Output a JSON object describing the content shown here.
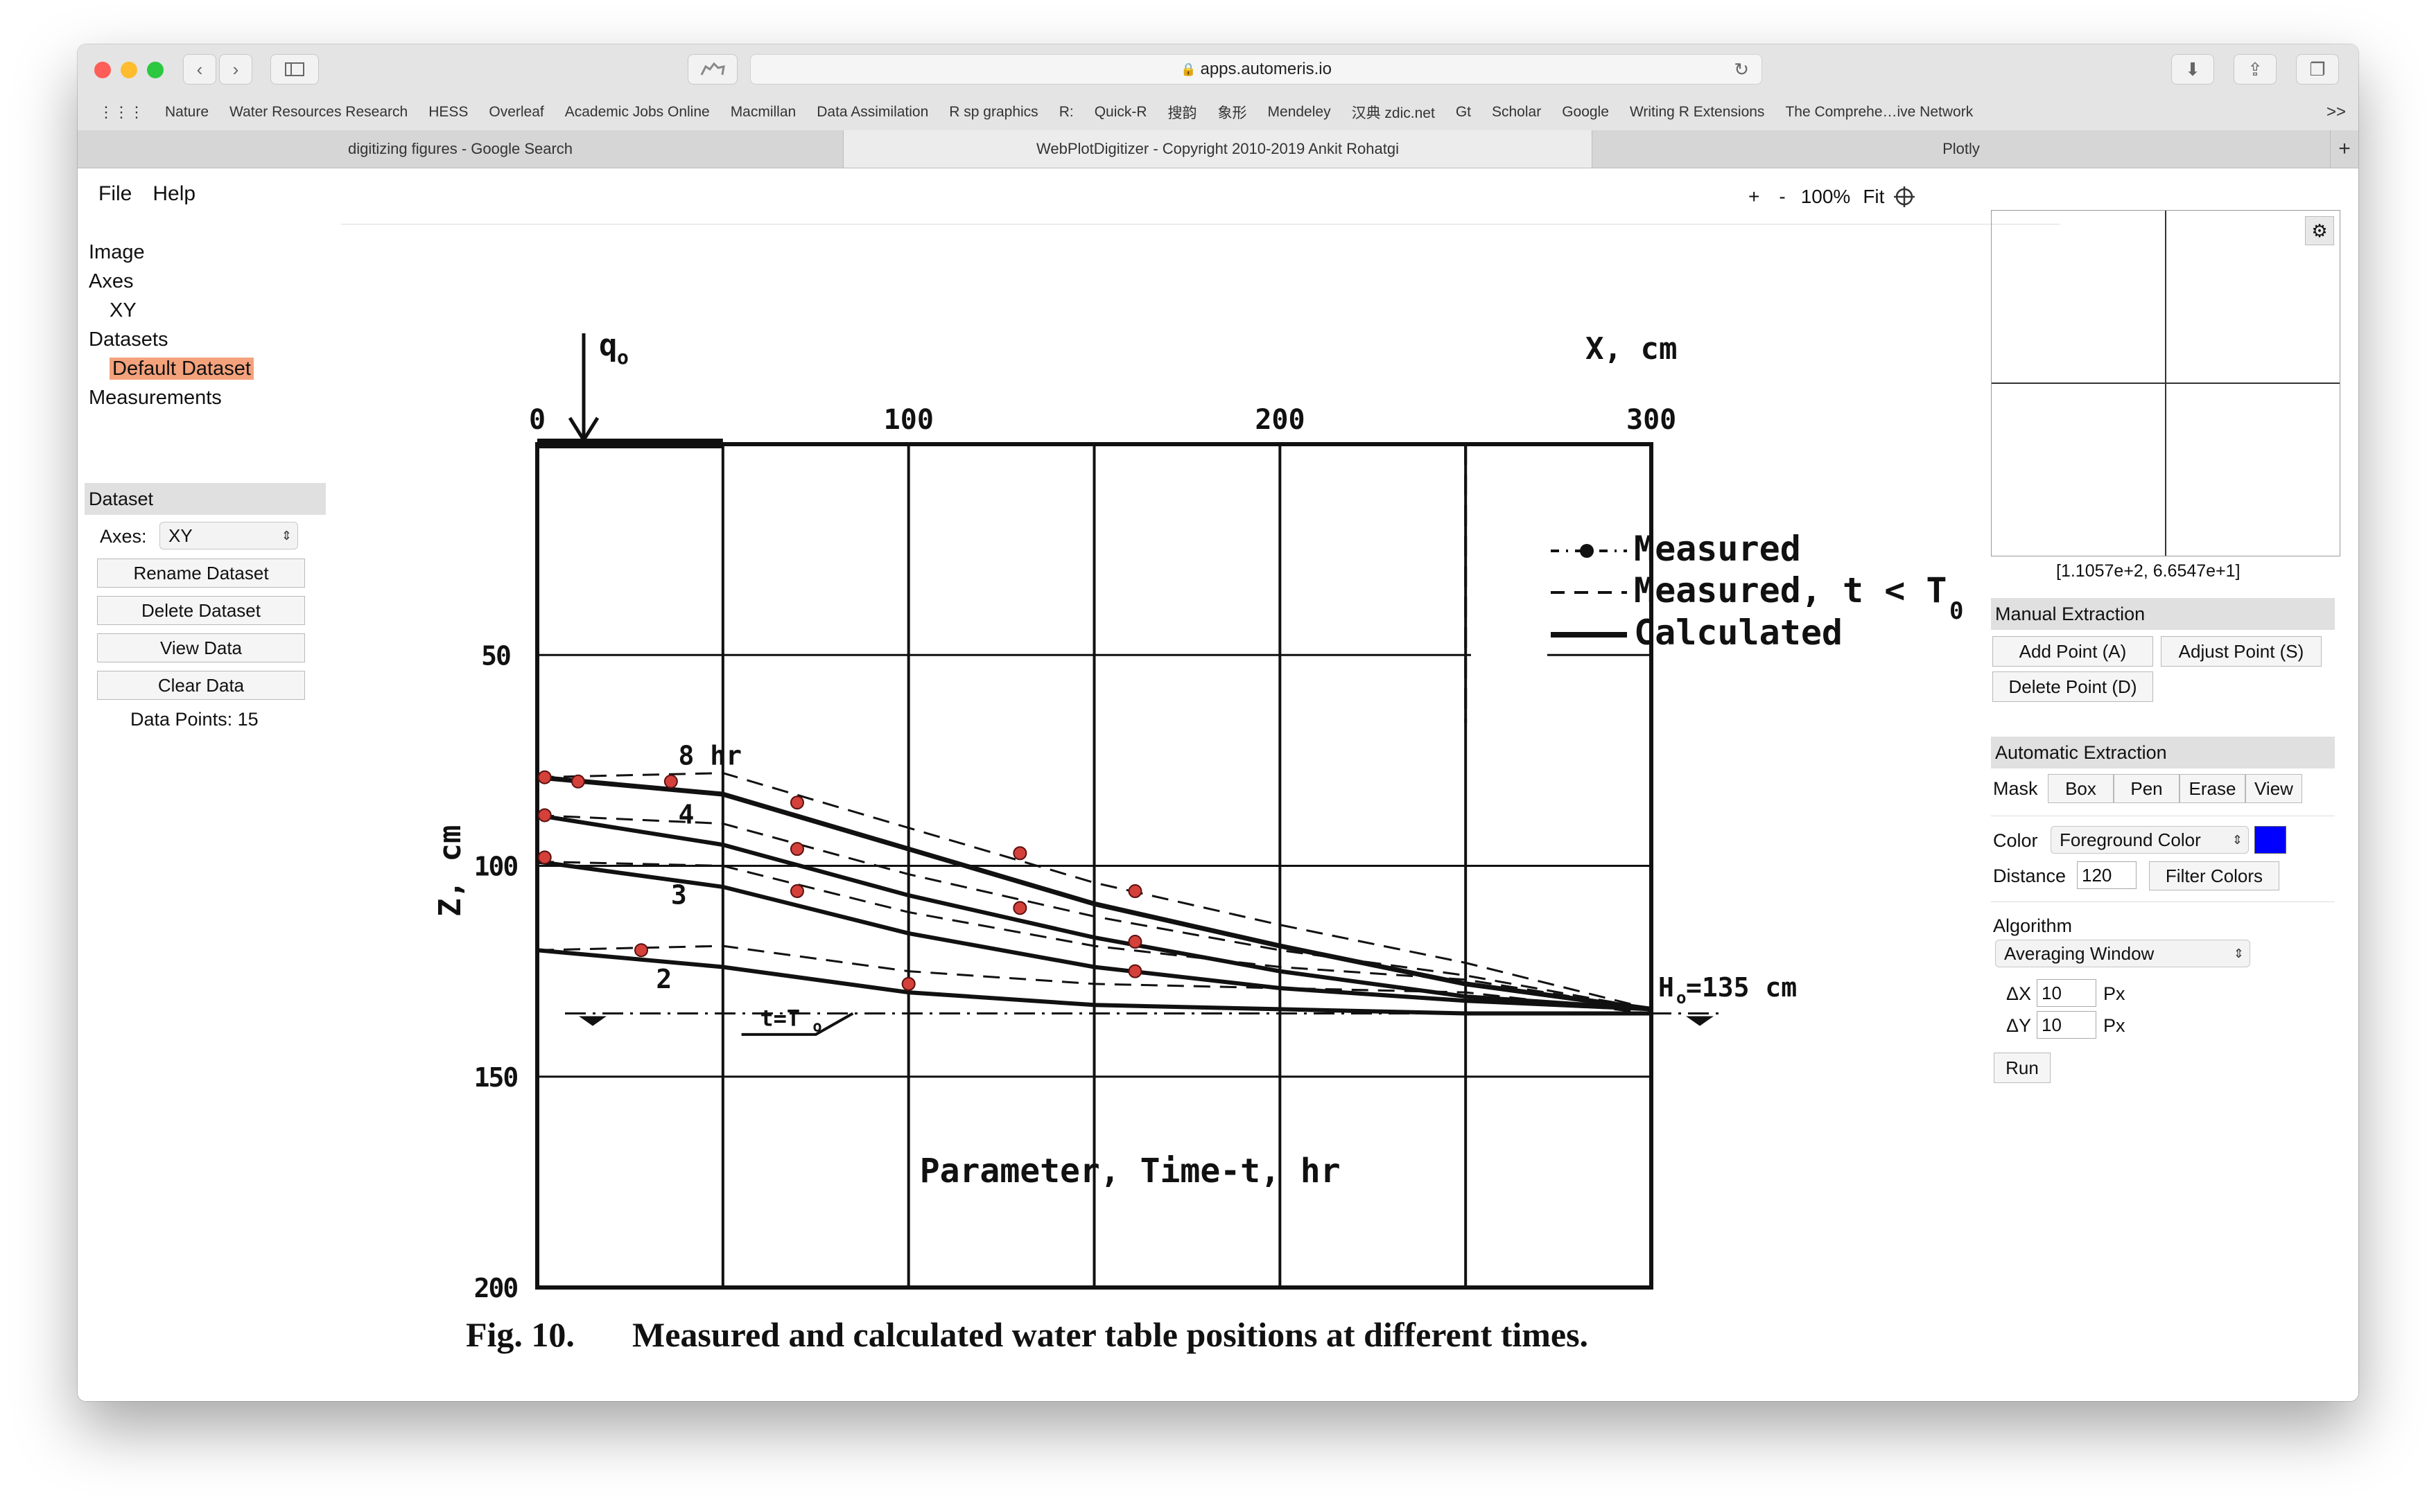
{
  "browser": {
    "url": "apps.automeris.io",
    "bookmarks": [
      "Nature",
      "Water Resources Research",
      "HESS",
      "Overleaf",
      "Academic Jobs Online",
      "Macmillan",
      "Data Assimilation",
      "R sp graphics",
      "R:",
      "Quick-R",
      "搜韵",
      "象形",
      "Mendeley",
      "汉典 zdic.net",
      "Gt",
      "Scholar",
      "Google",
      "Writing R Extensions",
      "The Comprehe…ive Network"
    ],
    "more": ">>",
    "tabs": [
      "digitizing figures - Google Search",
      "WebPlotDigitizer - Copyright 2010-2019 Ankit Rohatgi",
      "Plotly"
    ],
    "new_tab": "+"
  },
  "menu": {
    "file": "File",
    "help": "Help"
  },
  "nav": {
    "image": "Image",
    "axes": "Axes",
    "xy": "XY",
    "datasets": "Datasets",
    "default_dataset": "Default Dataset",
    "measurements": "Measurements"
  },
  "dataset_panel": {
    "header": "Dataset",
    "axes_label": "Axes:",
    "axes_value": "XY",
    "rename": "Rename Dataset",
    "delete": "Delete Dataset",
    "view": "View Data",
    "clear": "Clear Data",
    "points": "Data Points: 15"
  },
  "zoom": {
    "plus": "+",
    "minus": "-",
    "level": "100%",
    "fit": "Fit"
  },
  "magnifier": {
    "coords": "[1.1057e+2, 6.6547e+1]"
  },
  "manual": {
    "header": "Manual Extraction",
    "add": "Add Point (A)",
    "adjust": "Adjust Point (S)",
    "delete": "Delete Point (D)"
  },
  "auto": {
    "header": "Automatic Extraction",
    "mask": "Mask",
    "box": "Box",
    "pen": "Pen",
    "erase": "Erase",
    "view": "View",
    "color_label": "Color",
    "color_value": "Foreground Color",
    "color_swatch": "#0000ff",
    "distance_label": "Distance",
    "distance_value": "120",
    "filter": "Filter Colors",
    "algorithm_label": "Algorithm",
    "algorithm_value": "Averaging Window",
    "dx_label": "ΔX",
    "dx_value": "10",
    "dy_label": "ΔY",
    "dy_value": "10",
    "px": "Px",
    "run": "Run"
  },
  "figure": {
    "x_ticks": [
      "0",
      "100",
      "200",
      "300"
    ],
    "y_ticks": [
      "50",
      "100",
      "150",
      "200"
    ],
    "x_axis_label": "X, cm",
    "y_axis_label": "Z, cm",
    "q_label": "q",
    "q_sub": "o",
    "legend": [
      "Measured",
      "Measured, t < T",
      "Calculated"
    ],
    "legend_sub": "0",
    "curve_labels": [
      "8 hr",
      "4",
      "3",
      "2"
    ],
    "t_label": "t=T",
    "t_sub": "o",
    "h_label": "H",
    "h_sub": "o",
    "h_value": "=135 cm",
    "param_label": "Parameter, Time-t, hr",
    "caption_num": "Fig. 10.",
    "caption_text": "Measured and calculated water table positions at different times."
  },
  "chart_data": {
    "type": "line",
    "xlabel": "X, cm",
    "ylabel": "Z, cm",
    "xlim": [
      0,
      300
    ],
    "ylim": [
      200,
      0
    ],
    "grid": true,
    "legend": "top-right",
    "series": [
      {
        "name": "Calculated",
        "x": [
          0,
          50,
          100,
          150,
          200,
          250,
          300
        ],
        "values": [
          79,
          83,
          96,
          109,
          119,
          128,
          134
        ]
      },
      {
        "name": "Calculated",
        "x": [
          0,
          50,
          100,
          150,
          200,
          250,
          300
        ],
        "values": [
          88,
          95,
          107,
          117,
          125,
          131,
          134
        ]
      },
      {
        "name": "Calculated",
        "x": [
          0,
          50,
          100,
          150,
          200,
          250,
          300
        ],
        "values": [
          99,
          105,
          116,
          124,
          129,
          132,
          134
        ]
      },
      {
        "name": "Calculated",
        "x": [
          0,
          50,
          100,
          150,
          200,
          250,
          300
        ],
        "values": [
          120,
          124,
          130,
          133,
          134,
          135,
          135
        ]
      }
    ],
    "extracted_points": [
      {
        "x": 2,
        "y": 79
      },
      {
        "x": 11,
        "y": 80
      },
      {
        "x": 36,
        "y": 80
      },
      {
        "x": 70,
        "y": 85
      },
      {
        "x": 130,
        "y": 97
      },
      {
        "x": 161,
        "y": 106
      },
      {
        "x": 2,
        "y": 88
      },
      {
        "x": 70,
        "y": 96
      },
      {
        "x": 130,
        "y": 110
      },
      {
        "x": 161,
        "y": 118
      },
      {
        "x": 2,
        "y": 98
      },
      {
        "x": 70,
        "y": 106
      },
      {
        "x": 161,
        "y": 125
      },
      {
        "x": 28,
        "y": 120
      },
      {
        "x": 100,
        "y": 128
      }
    ]
  }
}
